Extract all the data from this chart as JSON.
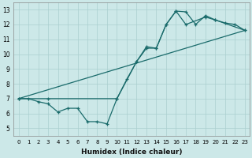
{
  "bg_color": "#cce8e8",
  "grid_color": "#aacfcf",
  "line_color": "#1a6b6b",
  "xlabel": "Humidex (Indice chaleur)",
  "xlim": [
    -0.5,
    23.5
  ],
  "ylim": [
    4.5,
    13.5
  ],
  "xticks": [
    0,
    1,
    2,
    3,
    4,
    5,
    6,
    7,
    8,
    9,
    10,
    11,
    12,
    13,
    14,
    15,
    16,
    17,
    18,
    19,
    20,
    21,
    22,
    23
  ],
  "yticks": [
    5,
    6,
    7,
    8,
    9,
    10,
    11,
    12,
    13
  ],
  "line1_x": [
    0,
    1,
    2,
    3,
    4,
    5,
    6,
    7,
    8,
    9,
    10,
    11,
    12,
    13,
    14,
    15,
    16,
    17,
    18,
    19,
    20,
    21,
    22,
    23
  ],
  "line1_y": [
    7.0,
    7.0,
    6.8,
    6.65,
    6.1,
    6.35,
    6.35,
    5.45,
    5.45,
    5.3,
    7.0,
    8.3,
    9.5,
    10.5,
    10.4,
    12.0,
    12.9,
    12.85,
    12.0,
    12.6,
    12.3,
    12.1,
    12.0,
    11.6
  ],
  "line2_x": [
    0,
    3,
    10,
    12,
    13,
    14,
    15,
    16,
    17,
    19,
    20,
    23
  ],
  "line2_y": [
    7.0,
    7.0,
    7.0,
    9.5,
    10.4,
    10.4,
    12.0,
    12.9,
    12.0,
    12.5,
    12.3,
    11.6
  ],
  "line3_x": [
    0,
    23
  ],
  "line3_y": [
    7.0,
    11.6
  ]
}
